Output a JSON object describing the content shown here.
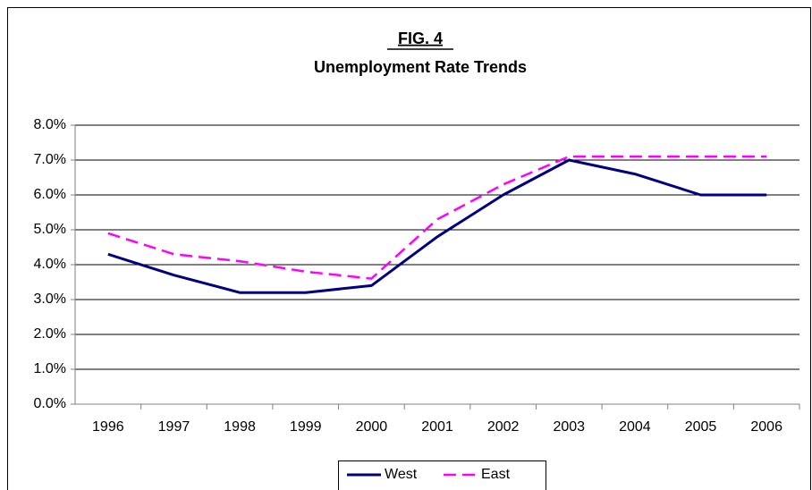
{
  "chart_data": {
    "type": "line",
    "title": "FIG. 4",
    "subtitle": "Unemployment Rate Trends",
    "categories": [
      "1996",
      "1997",
      "1998",
      "1999",
      "2000",
      "2001",
      "2002",
      "2003",
      "2004",
      "2005",
      "2006"
    ],
    "series": [
      {
        "name": "West",
        "color": "#000080",
        "dash": false,
        "values": [
          4.3,
          3.7,
          3.2,
          3.2,
          3.4,
          4.8,
          6.0,
          7.0,
          6.6,
          6.0,
          6.0
        ]
      },
      {
        "name": "East",
        "color": "#ff00ff",
        "dash": true,
        "values": [
          4.9,
          4.3,
          4.1,
          3.8,
          3.6,
          5.3,
          6.3,
          7.1,
          7.1,
          7.1,
          7.1
        ]
      }
    ],
    "ylim": [
      0,
      8
    ],
    "yticks": [
      {
        "value": 0,
        "label": "0.0%"
      },
      {
        "value": 1,
        "label": "1.0%"
      },
      {
        "value": 2,
        "label": "2.0%"
      },
      {
        "value": 3,
        "label": "3.0%"
      },
      {
        "value": 4,
        "label": "4.0%"
      },
      {
        "value": 5,
        "label": "5.0%"
      },
      {
        "value": 6,
        "label": "6.0%"
      },
      {
        "value": 7,
        "label": "7.0%"
      },
      {
        "value": 8,
        "label": "8.0%"
      }
    ],
    "grid": true,
    "legend": "bottom"
  }
}
